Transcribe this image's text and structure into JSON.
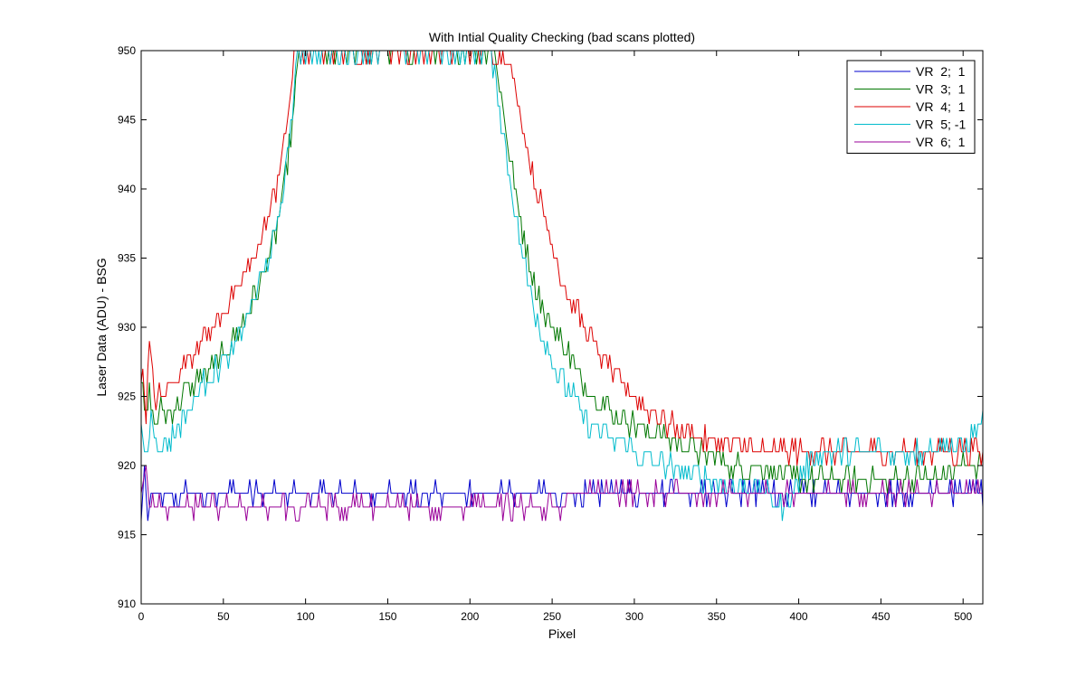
{
  "chart_data": {
    "type": "line",
    "title": "With Intial Quality Checking (bad scans plotted)",
    "xlabel": "Pixel",
    "ylabel": "Laser Data (ADU) - BSG",
    "xlim": [
      0,
      512
    ],
    "ylim": [
      910,
      950
    ],
    "xticks": [
      0,
      50,
      100,
      150,
      200,
      250,
      300,
      350,
      400,
      450,
      500
    ],
    "yticks": [
      910,
      915,
      920,
      925,
      930,
      935,
      940,
      945,
      950
    ],
    "grid": false,
    "legend_position": "top-right",
    "series": [
      {
        "name": "VR  2;  1",
        "color": "#0000cc",
        "style": "noisy-baseline",
        "points": [
          [
            0,
            916
          ],
          [
            2,
            920
          ],
          [
            4,
            916
          ],
          [
            6,
            918
          ],
          [
            512,
            918
          ]
        ]
      },
      {
        "name": "VR  3;  1",
        "color": "#007700",
        "style": "noisy",
        "points": [
          [
            0,
            926
          ],
          [
            3,
            923
          ],
          [
            5,
            925
          ],
          [
            8,
            923
          ],
          [
            12,
            924
          ],
          [
            17,
            924
          ],
          [
            25,
            925
          ],
          [
            35,
            926.5
          ],
          [
            45,
            927
          ],
          [
            55,
            929
          ],
          [
            65,
            931
          ],
          [
            75,
            934
          ],
          [
            82,
            937
          ],
          [
            88,
            941
          ],
          [
            93,
            946
          ],
          [
            96,
            950
          ],
          [
            215,
            950
          ],
          [
            220,
            946
          ],
          [
            225,
            942
          ],
          [
            230,
            938
          ],
          [
            236,
            935
          ],
          [
            245,
            931
          ],
          [
            255,
            929
          ],
          [
            265,
            927
          ],
          [
            275,
            925
          ],
          [
            285,
            924
          ],
          [
            300,
            923
          ],
          [
            320,
            922
          ],
          [
            340,
            921
          ],
          [
            360,
            920
          ],
          [
            380,
            920
          ],
          [
            400,
            919
          ],
          [
            420,
            919
          ],
          [
            440,
            919
          ],
          [
            460,
            919
          ],
          [
            480,
            919
          ],
          [
            500,
            920
          ],
          [
            512,
            920
          ]
        ]
      },
      {
        "name": "VR  4;  1",
        "color": "#dd0000",
        "style": "noisy",
        "points": [
          [
            0,
            927
          ],
          [
            3,
            924
          ],
          [
            5,
            929
          ],
          [
            8,
            925
          ],
          [
            12,
            925
          ],
          [
            18,
            926
          ],
          [
            25,
            927
          ],
          [
            35,
            929
          ],
          [
            45,
            930
          ],
          [
            55,
            932
          ],
          [
            65,
            934
          ],
          [
            75,
            937
          ],
          [
            82,
            940
          ],
          [
            88,
            944
          ],
          [
            92,
            948
          ],
          [
            94,
            950
          ],
          [
            222,
            950
          ],
          [
            228,
            947
          ],
          [
            235,
            943
          ],
          [
            245,
            938
          ],
          [
            255,
            934
          ],
          [
            265,
            931
          ],
          [
            275,
            929
          ],
          [
            285,
            927
          ],
          [
            300,
            925
          ],
          [
            320,
            923
          ],
          [
            340,
            922
          ],
          [
            360,
            921.5
          ],
          [
            380,
            921
          ],
          [
            400,
            921
          ],
          [
            430,
            921
          ],
          [
            470,
            921
          ],
          [
            500,
            921
          ],
          [
            512,
            921
          ]
        ]
      },
      {
        "name": "VR  5; -1",
        "color": "#00bbcc",
        "style": "noisy",
        "points": [
          [
            0,
            923
          ],
          [
            3,
            921
          ],
          [
            6,
            924
          ],
          [
            10,
            921
          ],
          [
            15,
            922
          ],
          [
            20,
            922
          ],
          [
            28,
            924
          ],
          [
            38,
            926
          ],
          [
            45,
            927
          ],
          [
            55,
            928
          ],
          [
            65,
            931
          ],
          [
            75,
            934
          ],
          [
            82,
            937
          ],
          [
            88,
            941
          ],
          [
            93,
            947
          ],
          [
            95,
            950
          ],
          [
            213,
            950
          ],
          [
            218,
            946
          ],
          [
            223,
            942
          ],
          [
            228,
            938
          ],
          [
            234,
            934
          ],
          [
            242,
            930
          ],
          [
            252,
            927
          ],
          [
            262,
            925
          ],
          [
            272,
            923
          ],
          [
            285,
            922
          ],
          [
            300,
            921
          ],
          [
            320,
            920
          ],
          [
            340,
            919
          ],
          [
            360,
            918.5
          ],
          [
            380,
            918
          ],
          [
            390,
            917
          ],
          [
            395,
            918
          ],
          [
            405,
            920
          ],
          [
            412,
            921
          ],
          [
            440,
            921
          ],
          [
            470,
            921
          ],
          [
            500,
            921.5
          ],
          [
            512,
            923
          ]
        ]
      },
      {
        "name": "VR  6;  1",
        "color": "#990099",
        "style": "noisy-baseline",
        "points": [
          [
            0,
            918
          ],
          [
            3,
            920
          ],
          [
            5,
            917
          ],
          [
            512,
            918
          ]
        ]
      }
    ]
  }
}
